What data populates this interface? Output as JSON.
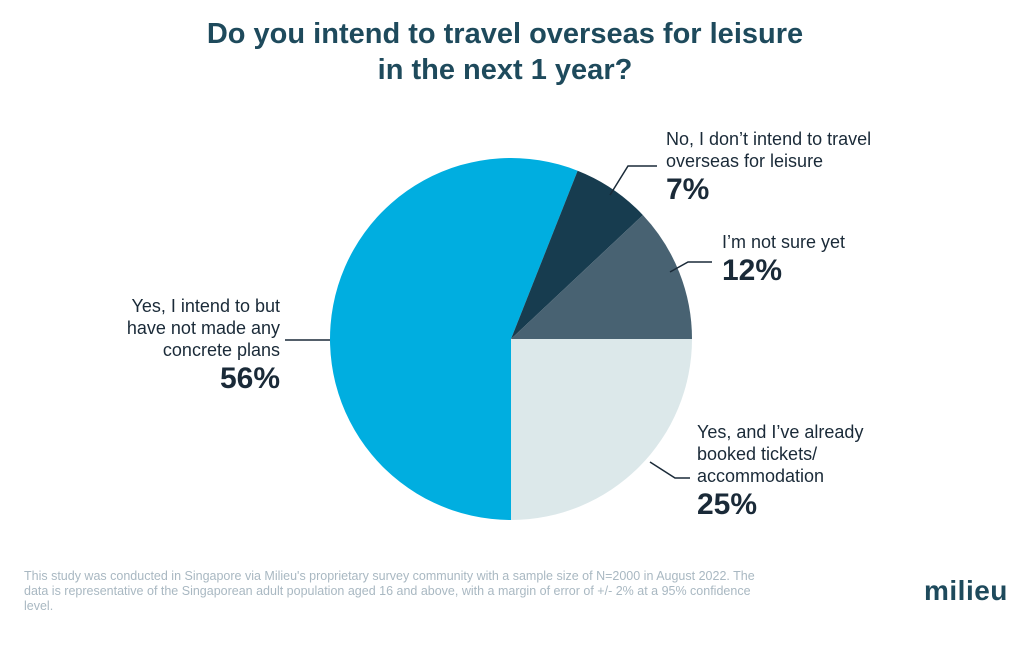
{
  "title": {
    "line1": "Do you intend to travel overseas for leisure",
    "line2": "in the next 1 year?"
  },
  "chart_data": {
    "type": "pie",
    "slices": [
      {
        "lines": [
          "Yes, and I’ve already",
          "booked tickets/",
          "accommodation"
        ],
        "value": 25,
        "label": "25%",
        "color": "#dce8ea"
      },
      {
        "lines": [
          "Yes, I intend to but",
          "have not made any",
          "concrete plans"
        ],
        "value": 56,
        "label": "56%",
        "color": "#00aee0"
      },
      {
        "lines": [
          "No, I don’t intend to travel",
          "overseas for leisure"
        ],
        "value": 7,
        "label": "7%",
        "color": "#173c4f"
      },
      {
        "lines": [
          "I’m not sure yet"
        ],
        "value": 12,
        "label": "12%",
        "color": "#486272"
      }
    ]
  },
  "footnote": "This study was conducted in Singapore via Milieu's proprietary survey community with a sample size of N=2000 in August 2022. The data is representative of the Singaporean adult population aged 16 and above, with a margin of error of +/- 2% at a 95% confidence level.",
  "logo": "milieu"
}
